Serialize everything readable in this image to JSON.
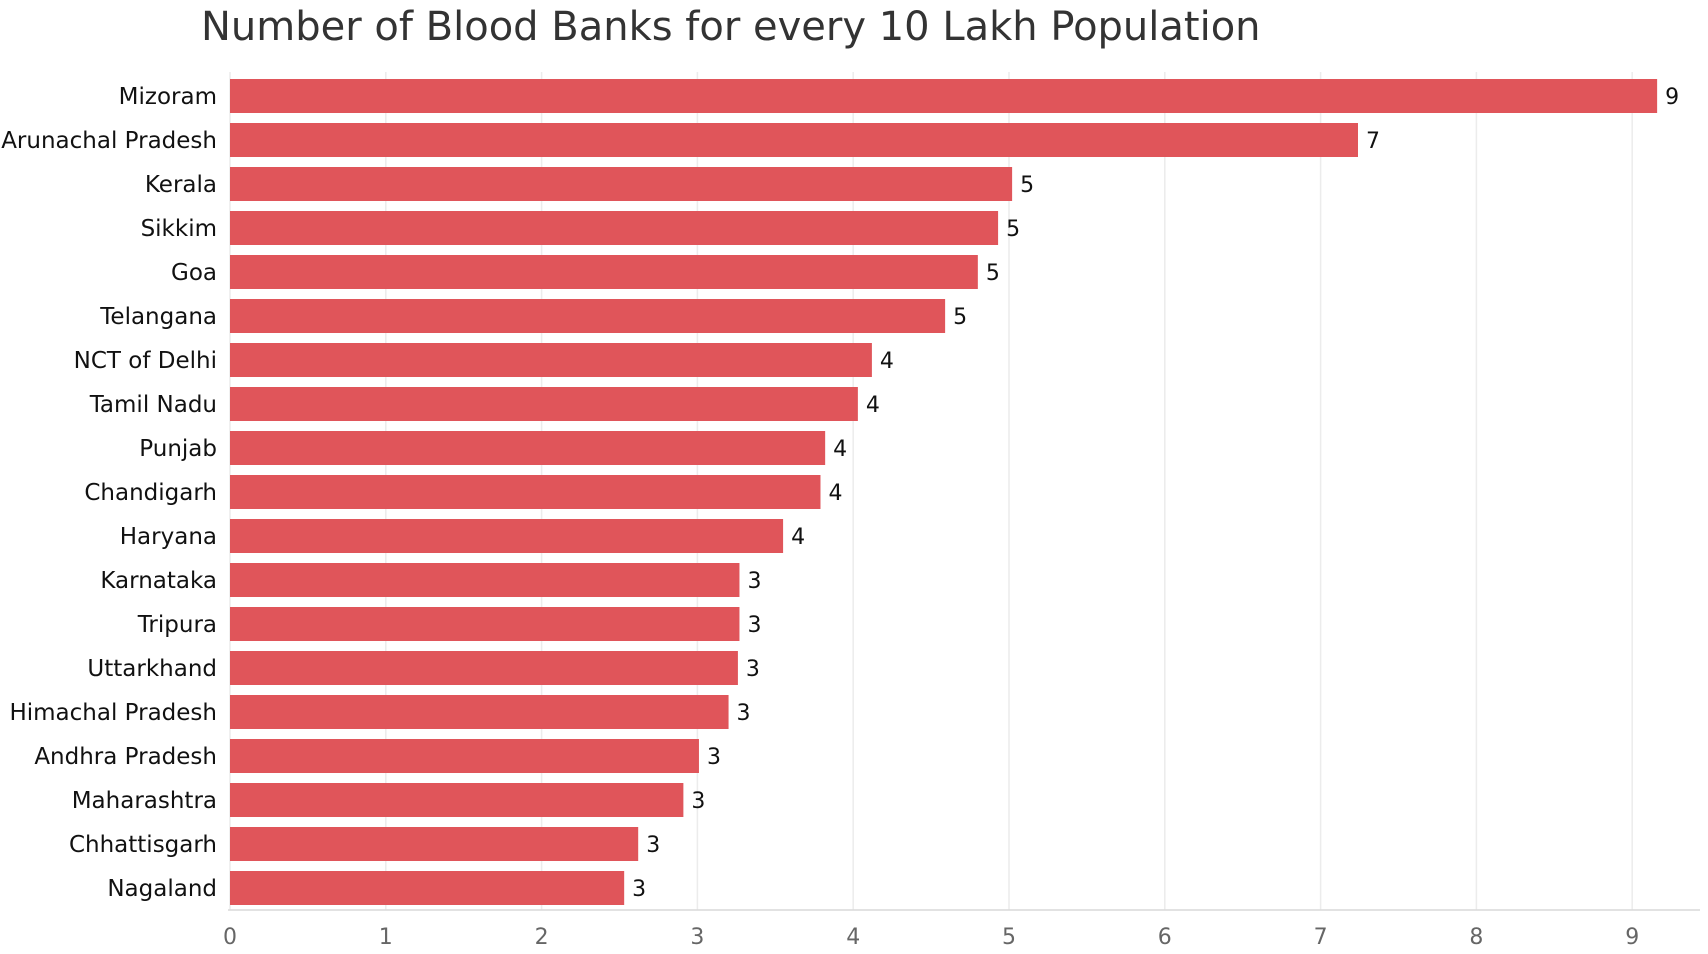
{
  "chart_data": {
    "type": "bar",
    "orientation": "horizontal",
    "title": "Number of Blood Banks for every 10 Lakh Population",
    "xlabel": "",
    "ylabel": "",
    "categories": [
      "Mizoram",
      "Arunachal Pradesh",
      "Kerala",
      "Sikkim",
      "Goa",
      "Telangana",
      "NCT of Delhi",
      "Tamil Nadu",
      "Punjab",
      "Chandigarh",
      "Haryana",
      "Karnataka",
      "Tripura",
      "Uttarkhand",
      "Himachal Pradesh",
      "Andhra Pradesh",
      "Maharashtra",
      "Chhattisgarh",
      "Nagaland"
    ],
    "values": [
      9.16,
      7.24,
      5.02,
      4.93,
      4.8,
      4.59,
      4.12,
      4.03,
      3.82,
      3.79,
      3.55,
      3.27,
      3.27,
      3.26,
      3.2,
      3.01,
      2.91,
      2.62,
      2.53
    ],
    "data_labels": [
      "9",
      "7",
      "5",
      "5",
      "5",
      "5",
      "4",
      "4",
      "4",
      "4",
      "4",
      "3",
      "3",
      "3",
      "3",
      "3",
      "3",
      "3",
      "3"
    ],
    "xlim": [
      0,
      9.4
    ],
    "xticks": [
      "0",
      "1",
      "2",
      "3",
      "4",
      "5",
      "6",
      "7",
      "8",
      "9"
    ],
    "grid": true,
    "legend": "none",
    "bar_color": "#e0555a"
  }
}
